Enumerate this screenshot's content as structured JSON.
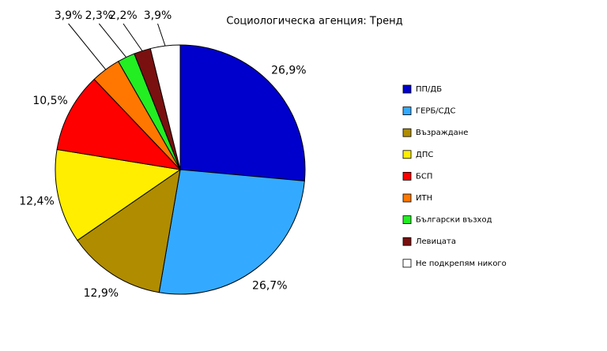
{
  "chart_data": {
    "type": "pie",
    "title": "Социологическа агенция: Тренд",
    "categories": [
      "ПП/ДБ",
      "ГЕРБ/СДС",
      "Възраждане",
      "ДПС",
      "БСП",
      "ИТН",
      "Български възход",
      "Левицата",
      "Не подкрепям никого"
    ],
    "values": [
      26.9,
      26.7,
      12.9,
      12.4,
      10.5,
      3.9,
      2.3,
      2.2,
      3.9
    ],
    "value_labels": [
      "26,9%",
      "26,7%",
      "12,9%",
      "12,4%",
      "10,5%",
      "3,9%",
      "2,3%",
      "2,2%",
      "3,9%"
    ],
    "colors": [
      "#0000cc",
      "#33aaff",
      "#b08c00",
      "#ffee00",
      "#ff0000",
      "#ff7700",
      "#22ee22",
      "#7a1010",
      "#ffffff"
    ],
    "legend": "right"
  }
}
